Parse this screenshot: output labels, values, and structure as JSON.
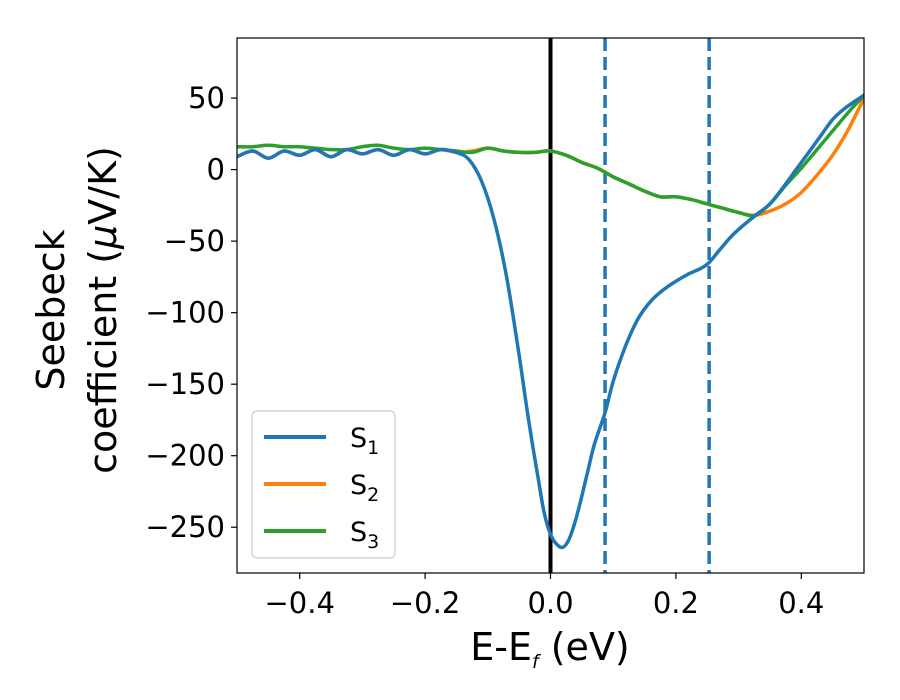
{
  "chart_data": {
    "type": "line",
    "title": "",
    "xlabel": {
      "main": "E-E",
      "sub": "f",
      "unit": " (eV)"
    },
    "ylabel": {
      "line1": "Seebeck",
      "line2": "coefficient  (",
      "mu": "μ",
      "unit": "V/K)"
    },
    "xlim": [
      -0.5,
      0.5
    ],
    "ylim": [
      -282,
      92
    ],
    "xticks": [
      -0.4,
      -0.2,
      0.0,
      0.2,
      0.4
    ],
    "xtick_labels": [
      "−0.4",
      "−0.2",
      "0.0",
      "0.2",
      "0.4"
    ],
    "yticks": [
      50,
      0,
      -50,
      -100,
      -150,
      -200,
      -250
    ],
    "ytick_labels": [
      "50",
      "0",
      "−50",
      "−100",
      "−150",
      "−200",
      "−250"
    ],
    "grid": false,
    "legend_position": "lower-left",
    "vertical_lines": [
      {
        "x": 0.0,
        "style": "solid",
        "color": "#000000"
      },
      {
        "x": 0.087,
        "style": "dashed",
        "color": "#1f77b4"
      },
      {
        "x": 0.253,
        "style": "dashed",
        "color": "#1f77b4"
      }
    ],
    "series": [
      {
        "name": "S",
        "sub": "1",
        "color": "#1f77b4",
        "x": [
          -0.5,
          -0.475,
          -0.45,
          -0.425,
          -0.4,
          -0.375,
          -0.35,
          -0.325,
          -0.3,
          -0.275,
          -0.25,
          -0.225,
          -0.2,
          -0.175,
          -0.15,
          -0.13,
          -0.11,
          -0.09,
          -0.07,
          -0.05,
          -0.035,
          -0.02,
          -0.01,
          0.0,
          0.01,
          0.02,
          0.03,
          0.04,
          0.05,
          0.06,
          0.07,
          0.087,
          0.1,
          0.12,
          0.14,
          0.16,
          0.18,
          0.2,
          0.22,
          0.24,
          0.253,
          0.27,
          0.29,
          0.31,
          0.33,
          0.35,
          0.37,
          0.39,
          0.41,
          0.43,
          0.45,
          0.47,
          0.5
        ],
        "y": [
          9,
          13,
          8,
          13,
          10,
          14,
          9,
          14,
          11,
          14,
          10,
          14,
          11,
          14,
          12,
          7,
          -8,
          -35,
          -75,
          -130,
          -175,
          -215,
          -240,
          -255,
          -262,
          -264,
          -258,
          -245,
          -228,
          -210,
          -192,
          -170,
          -148,
          -123,
          -104,
          -92,
          -84,
          -78,
          -73,
          -69,
          -65,
          -56,
          -46,
          -38,
          -31,
          -24,
          -13,
          -1,
          11,
          23,
          35,
          43,
          52
        ]
      },
      {
        "name": "S",
        "sub": "2",
        "color": "#ff7f0e",
        "x": [
          -0.5,
          -0.475,
          -0.45,
          -0.425,
          -0.4,
          -0.375,
          -0.35,
          -0.325,
          -0.3,
          -0.275,
          -0.25,
          -0.225,
          -0.2,
          -0.175,
          -0.15,
          -0.125,
          -0.1,
          -0.075,
          -0.05,
          -0.025,
          0.0,
          0.025,
          0.05,
          0.075,
          0.1,
          0.125,
          0.15,
          0.175,
          0.2,
          0.225,
          0.25,
          0.275,
          0.3,
          0.325,
          0.35,
          0.375,
          0.4,
          0.425,
          0.45,
          0.475,
          0.5
        ],
        "y": [
          9,
          13,
          8,
          13,
          10,
          14,
          9,
          14,
          11,
          14,
          10,
          14,
          11,
          14,
          12,
          13,
          15,
          13,
          12,
          12,
          13,
          10,
          5,
          1,
          -5,
          -10,
          -15,
          -19,
          -19,
          -21,
          -24,
          -27,
          -30,
          -32,
          -29,
          -24,
          -16,
          -4,
          10,
          28,
          50
        ]
      },
      {
        "name": "S",
        "sub": "3",
        "color": "#2ca02c",
        "x": [
          -0.5,
          -0.475,
          -0.45,
          -0.425,
          -0.4,
          -0.375,
          -0.35,
          -0.325,
          -0.3,
          -0.275,
          -0.25,
          -0.225,
          -0.2,
          -0.175,
          -0.15,
          -0.125,
          -0.1,
          -0.075,
          -0.05,
          -0.025,
          0.0,
          0.025,
          0.05,
          0.075,
          0.1,
          0.125,
          0.15,
          0.175,
          0.2,
          0.225,
          0.25,
          0.275,
          0.3,
          0.325,
          0.35,
          0.375,
          0.4,
          0.425,
          0.45,
          0.475,
          0.5
        ],
        "y": [
          16,
          16,
          17,
          16,
          16,
          15,
          14,
          14,
          16,
          17,
          15,
          14,
          15,
          14,
          13,
          12,
          15,
          13,
          12,
          12,
          13,
          10,
          5,
          1,
          -5,
          -10,
          -15,
          -19,
          -19,
          -21,
          -24,
          -27,
          -30,
          -32,
          -24,
          -11,
          1,
          14,
          27,
          40,
          52
        ]
      }
    ]
  }
}
